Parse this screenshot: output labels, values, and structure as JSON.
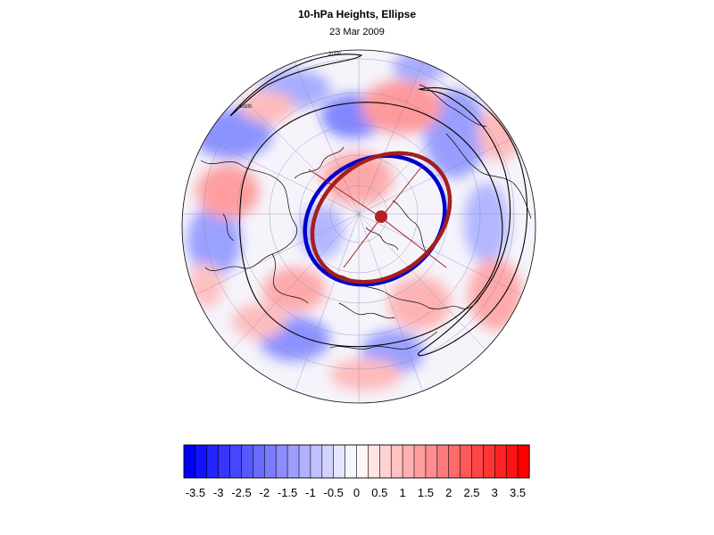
{
  "title": "10-hPa Heights, Ellipse",
  "subtitle": "23 Mar 2009",
  "contour_labels": [
    "31200",
    "31600"
  ],
  "colors": {
    "negative": "#0000ff",
    "positive": "#ff0000",
    "ellipse_fitted": "#a31f1f",
    "ellipse_reference": "#0000cc",
    "center_marker": "#b22222",
    "height_contours": "#000000"
  },
  "colorbar": {
    "labels": [
      "-3.5",
      "-3",
      "-2.5",
      "-2",
      "-1.5",
      "-1",
      "-0.5",
      "0",
      "0.5",
      "1",
      "1.5",
      "2",
      "2.5",
      "3",
      "3.5"
    ],
    "min": -3.75,
    "max": 3.75,
    "step": 0.25
  }
}
